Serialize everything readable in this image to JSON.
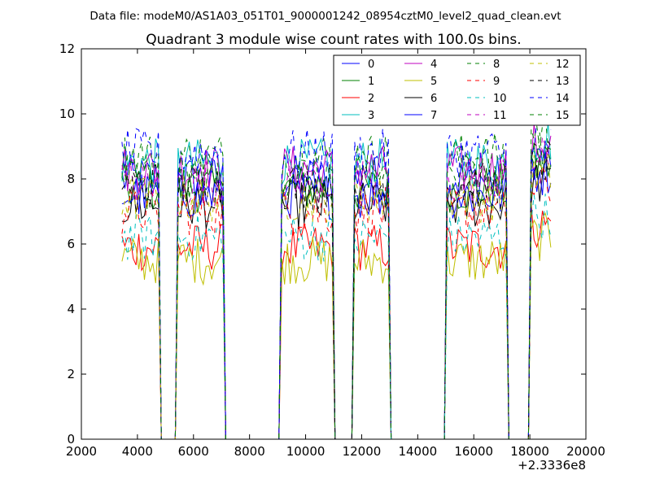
{
  "chart_data": {
    "type": "line",
    "suptitle": "Data file: modeM0/AS1A03_051T01_9000001242_08954cztM0_level2_quad_clean.evt",
    "title": "Quadrant 3 module wise count rates with 100.0s bins.",
    "xlabel": "",
    "ylabel": "",
    "x_offset_label": "+2.3336e8",
    "xlim": [
      2000,
      20000
    ],
    "ylim": [
      0,
      12
    ],
    "xticks": [
      2000,
      4000,
      6000,
      8000,
      10000,
      12000,
      14000,
      16000,
      18000,
      20000
    ],
    "xtick_labels": [
      "2000",
      "4000",
      "6000",
      "8000",
      "10000",
      "12000",
      "14000",
      "16000",
      "18000",
      "20000"
    ],
    "yticks": [
      0,
      2,
      4,
      6,
      8,
      10,
      12
    ],
    "ytick_labels": [
      "0",
      "2",
      "4",
      "6",
      "8",
      "10",
      "12"
    ],
    "grid": false,
    "legend_position": "upper-right",
    "legend_columns": 4,
    "bin_width": 100,
    "x_start": 3450,
    "x_end": 18750,
    "active_intervals": [
      [
        3450,
        4750
      ],
      [
        5450,
        7050
      ],
      [
        9150,
        10950
      ],
      [
        11750,
        12950
      ],
      [
        15050,
        17150
      ],
      [
        18050,
        18750
      ]
    ],
    "series": [
      {
        "name": "0",
        "color": "#0000ff",
        "dash": "solid",
        "level": 8.0
      },
      {
        "name": "1",
        "color": "#008000",
        "dash": "solid",
        "level": 7.7
      },
      {
        "name": "2",
        "color": "#ff0000",
        "dash": "solid",
        "level": 5.9
      },
      {
        "name": "3",
        "color": "#00bfbf",
        "dash": "solid",
        "level": 8.5
      },
      {
        "name": "4",
        "color": "#bf00bf",
        "dash": "solid",
        "level": 8.3
      },
      {
        "name": "5",
        "color": "#bfbf00",
        "dash": "solid",
        "level": 5.5
      },
      {
        "name": "6",
        "color": "#000000",
        "dash": "solid",
        "level": 7.2
      },
      {
        "name": "7",
        "color": "#0000ff",
        "dash": "solid",
        "level": 7.5
      },
      {
        "name": "8",
        "color": "#008000",
        "dash": "dashed",
        "level": 8.7
      },
      {
        "name": "9",
        "color": "#ff0000",
        "dash": "dashed",
        "level": 7.0
      },
      {
        "name": "10",
        "color": "#00bfbf",
        "dash": "dashed",
        "level": 6.2
      },
      {
        "name": "11",
        "color": "#bf00bf",
        "dash": "dashed",
        "level": 7.9
      },
      {
        "name": "12",
        "color": "#bfbf00",
        "dash": "dashed",
        "level": 7.4
      },
      {
        "name": "13",
        "color": "#000000",
        "dash": "dashed",
        "level": 7.8
      },
      {
        "name": "14",
        "color": "#0000ff",
        "dash": "dashed",
        "level": 8.8
      },
      {
        "name": "15",
        "color": "#008000",
        "dash": "dashed",
        "level": 8.1
      }
    ]
  }
}
